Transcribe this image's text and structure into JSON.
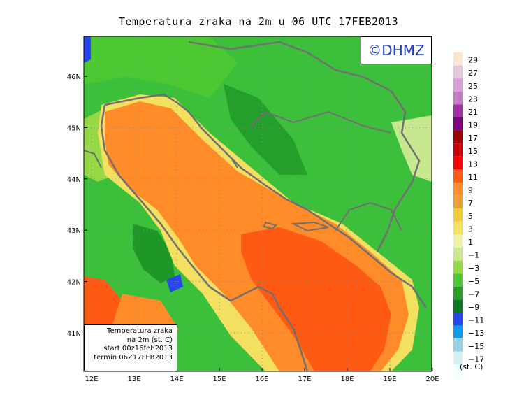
{
  "title": "Temperatura zraka na 2m u 06 UTC 17FEB2013",
  "logo": "©DHMZ",
  "info_box": [
    "Temperatura zraka",
    "na 2m (st. C)",
    "start 00z16feb2013",
    "termin 06Z17FEB2013"
  ],
  "x_axis": {
    "ticks": [
      "12E",
      "13E",
      "14E",
      "15E",
      "16E",
      "17E",
      "18E",
      "19E",
      "20E"
    ]
  },
  "y_axis": {
    "ticks": [
      "41N",
      "42N",
      "43N",
      "44N",
      "45N",
      "46N"
    ]
  },
  "legend": {
    "unit": "(st. C)",
    "labels": [
      "29",
      "27",
      "25",
      "23",
      "21",
      "19",
      "17",
      "15",
      "13",
      "11",
      "9",
      "7",
      "5",
      "3",
      "1",
      "−1",
      "−3",
      "−5",
      "−7",
      "−9",
      "−11",
      "−13",
      "−15",
      "−17"
    ],
    "colors": [
      "#fbe6d4",
      "#e0c8e0",
      "#d8a0d8",
      "#c878c8",
      "#a030a0",
      "#800080",
      "#a00000",
      "#cc0000",
      "#ff0000",
      "#ff5a14",
      "#ff8c28",
      "#e8a030",
      "#f0c838",
      "#f4e060",
      "#f0f0a8",
      "#c8e890",
      "#96d846",
      "#4cc832",
      "#28a028",
      "#0a7a20",
      "#2846f0",
      "#0a9ef0",
      "#96d2e6",
      "#d8f0f4",
      "#f0ffff"
    ]
  },
  "colors": {
    "land_green": "#3cc03c",
    "dark_green": "#1e9628",
    "sea_orange": "#ff8c28",
    "sea_red": "#ff5a14",
    "coast_line": "#707070"
  }
}
